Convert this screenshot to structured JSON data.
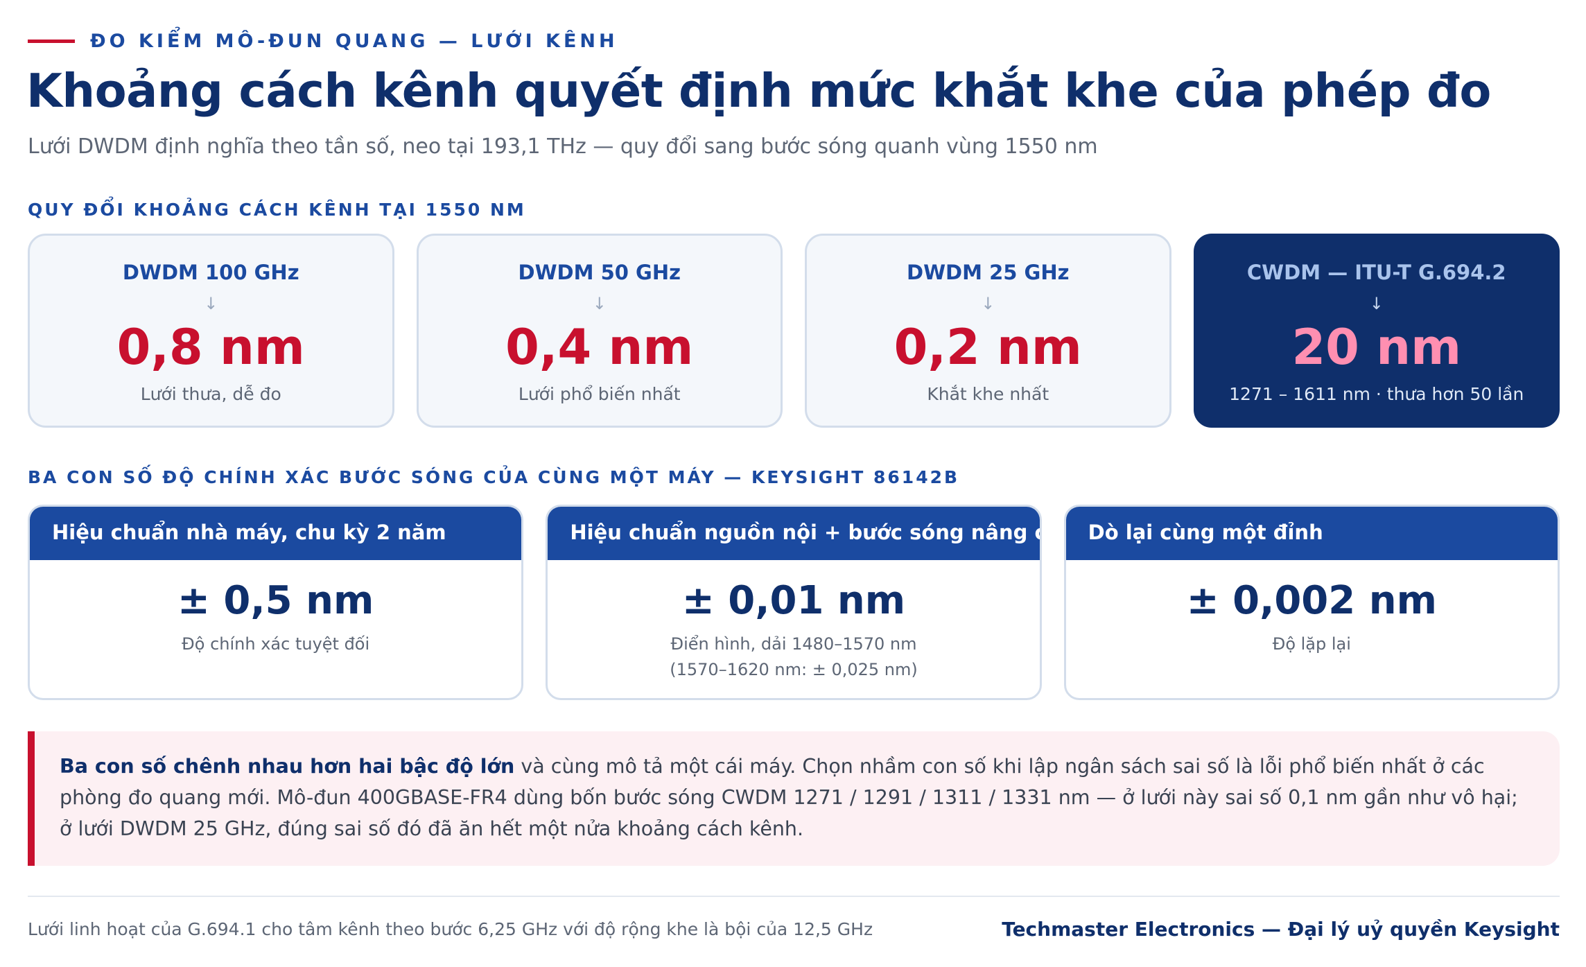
{
  "header": {
    "eyebrow": "ĐO KIỂM MÔ-ĐUN QUANG — LƯỚI KÊNH",
    "title": "Khoảng cách kênh quyết định mức khắt khe của phép đo",
    "subtitle": "Lưới DWDM định nghĩa theo tần số, neo tại 193,1 THz — quy đổi sang bước sóng quanh vùng 1550 nm"
  },
  "conversion": {
    "section_label": "QUY ĐỔI KHOẢNG CÁCH KÊNH TẠI 1550 NM",
    "arrow": "↓",
    "cards": [
      {
        "name": "DWDM 100 GHz",
        "value": "0,8 nm",
        "note": "Lưới thưa, dễ đo"
      },
      {
        "name": "DWDM 50 GHz",
        "value": "0,4 nm",
        "note": "Lưới phổ biến nhất"
      },
      {
        "name": "DWDM 25 GHz",
        "value": "0,2 nm",
        "note": "Khắt khe nhất"
      },
      {
        "name": "CWDM — ITU-T G.694.2",
        "value": "20 nm",
        "note": "1271 – 1611 nm · thưa hơn 50 lần"
      }
    ]
  },
  "accuracy": {
    "section_label": "BA CON SỐ ĐỘ CHÍNH XÁC BƯỚC SÓNG CỦA CÙNG MỘT MÁY — KEYSIGHT 86142B",
    "cards": [
      {
        "header": "Hiệu chuẩn nhà máy, chu kỳ 2 năm",
        "value": "± 0,5 nm",
        "note_line1": "Độ chính xác tuyệt đối",
        "note_line2": ""
      },
      {
        "header": "Hiệu chuẩn nguồn nội + bước sóng nâng cao",
        "value": "± 0,01 nm",
        "note_line1": "Điển hình, dải 1480–1570 nm",
        "note_line2": "(1570–1620 nm: ± 0,025 nm)"
      },
      {
        "header": "Dò lại cùng một đỉnh",
        "value": "± 0,002 nm",
        "note_line1": "Độ lặp lại",
        "note_line2": ""
      }
    ]
  },
  "callout": {
    "bold": "Ba con số chênh nhau hơn hai bậc độ lớn",
    "text": " và cùng mô tả một cái máy. Chọn nhầm con số khi lập ngân sách sai số là lỗi phổ biến nhất ở các phòng đo quang mới. Mô-đun 400GBASE-FR4 dùng bốn bước sóng CWDM 1271 / 1291 / 1311 / 1331 nm — ở lưới này sai số 0,1 nm gần như vô hại; ở lưới DWDM 25 GHz, đúng sai số đó đã ăn hết một nửa khoảng cách kênh."
  },
  "footer": {
    "left": "Lưới linh hoạt của G.694.1 cho tâm kênh theo bước 6,25 GHz với độ rộng khe là bội của 12,5 GHz",
    "right": "Techmaster Electronics — Đại lý uỷ quyền Keysight"
  },
  "colors": {
    "navy": "#0f2f6b",
    "blue": "#1b4aa0",
    "red": "#c8102e",
    "pink": "#ff8fb1"
  }
}
